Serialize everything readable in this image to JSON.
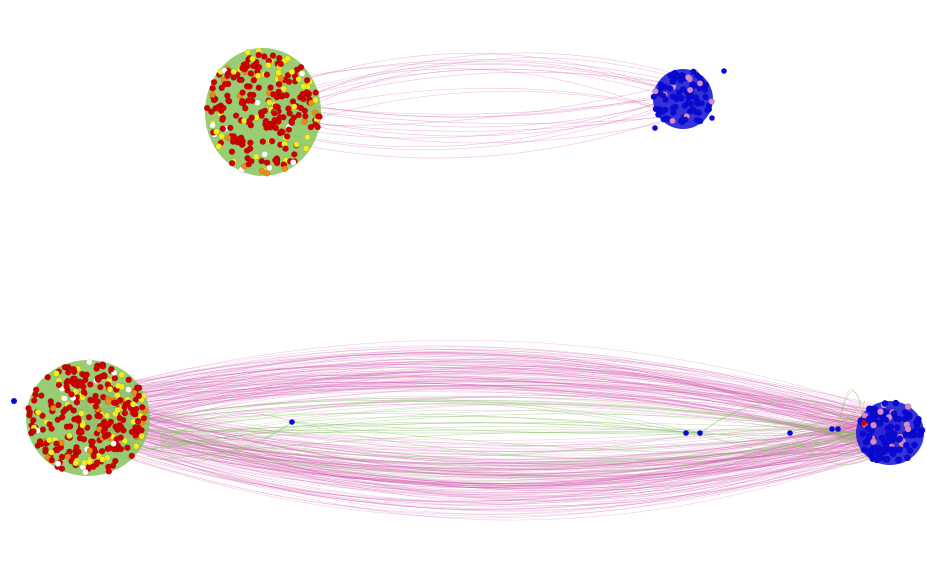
{
  "colors": {
    "background": "#ffffff",
    "cross_edge": "#d24aa8",
    "intra_edge": "#7fbf5a",
    "cluster_a_fill": "#86c45a",
    "cluster_b_fill": "#1010d8",
    "node_red": "#d10000",
    "node_yellow": "#f0f020",
    "node_orange": "#f08a10",
    "node_white": "#ffffff",
    "node_blue": "#0a0ad8",
    "node_pink": "#d88ac8"
  },
  "panels": [
    {
      "id": "top",
      "cross_edge_count": 26,
      "cluster_a_node_mix": {
        "red": 0.68,
        "yellow": 0.18,
        "orange": 0.08,
        "white": 0.06
      },
      "cluster_b_node_mix": {
        "blue": 0.86,
        "pink": 0.14
      }
    },
    {
      "id": "bottom",
      "cross_edge_count": 220,
      "cluster_a_node_mix": {
        "red": 0.7,
        "yellow": 0.18,
        "orange": 0.07,
        "white": 0.05
      },
      "cluster_b_node_mix": {
        "blue": 0.88,
        "pink": 0.12
      },
      "bridge_node_count": 6
    }
  ]
}
